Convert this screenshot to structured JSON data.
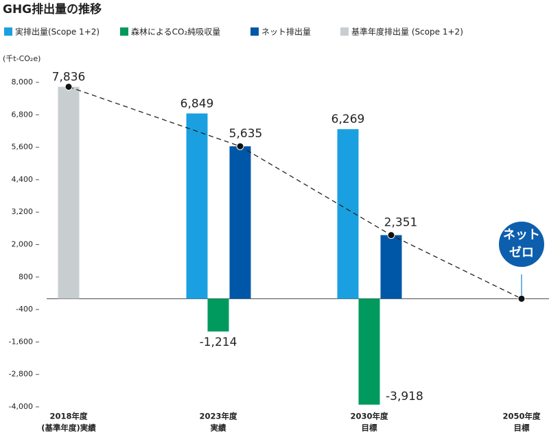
{
  "chart_data": {
    "type": "bar",
    "title": "GHG排出量の推移",
    "y_label": "(千t-CO₂e)",
    "categories": [
      [
        "2018年度",
        "(基準年度)実績"
      ],
      [
        "2023年度",
        "実績"
      ],
      [
        "2030年度",
        "目標"
      ],
      [
        "2050年度",
        "目標"
      ]
    ],
    "series": [
      {
        "name": "実排出量(Scope 1+2)",
        "color": "#1aa0e0",
        "values": [
          null,
          6849,
          6269,
          null
        ],
        "value_labels": [
          null,
          "6,849",
          "6,269",
          null
        ]
      },
      {
        "name": "森林によるCO₂純吸収量",
        "color": "#009a5e",
        "values": [
          null,
          -1214,
          -3918,
          null
        ],
        "value_labels": [
          null,
          "-1,214",
          "-3,918",
          null
        ]
      },
      {
        "name": "ネット排出量",
        "color": "#0057a8",
        "values": [
          null,
          5635,
          2351,
          null
        ],
        "value_labels": [
          null,
          "5,635",
          "2,351",
          null
        ]
      },
      {
        "name": "基準年度排出量 (Scope 1+2)",
        "color": "#c8cdd0",
        "values": [
          7836,
          null,
          null,
          null
        ],
        "value_labels": [
          "7,836",
          null,
          null,
          null
        ]
      }
    ],
    "trajectory": [
      7836,
      5635,
      2351,
      0
    ],
    "annotation": [
      "ネット",
      "ゼロ"
    ],
    "ylim": [
      -4000,
      8000
    ],
    "yticks": [
      {
        "value": 8000,
        "label": "8,000"
      },
      {
        "value": 6800,
        "label": "6,800"
      },
      {
        "value": 5600,
        "label": "5,600"
      },
      {
        "value": 4400,
        "label": "4,400"
      },
      {
        "value": 3200,
        "label": "3,200"
      },
      {
        "value": 2000,
        "label": "2,000"
      },
      800,
      -400,
      {
        "value": -1600,
        "label": "-1,600"
      },
      {
        "value": -2800,
        "label": "-2,800"
      },
      {
        "value": -4000,
        "label": "-4,000"
      }
    ]
  }
}
